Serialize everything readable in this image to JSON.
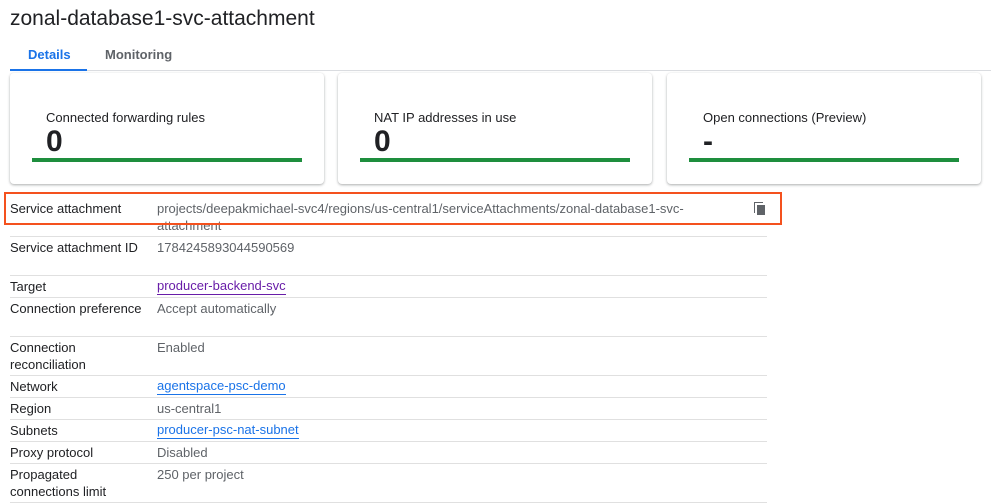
{
  "title": "zonal-database1-svc-attachment",
  "tabs": [
    {
      "label": "Details",
      "active": true
    },
    {
      "label": "Monitoring",
      "active": false
    }
  ],
  "cards": [
    {
      "label": "Connected forwarding rules",
      "value": "0"
    },
    {
      "label": "NAT IP addresses in use",
      "value": "0"
    },
    {
      "label": "Open connections (Preview)",
      "value": "-"
    }
  ],
  "colors": {
    "bar": "#1e8e3e",
    "link": "#1a73e8",
    "visited_link": "#681da8",
    "highlight": "#f4511e"
  },
  "details": [
    {
      "key": "Service attachment",
      "value": "projects/deepakmichael-svc4/regions/us-central1/serviceAttachments/zonal-database1-svc-attachment",
      "icon": "copy-icon"
    },
    {
      "key": "Service attachment ID",
      "value": "1784245893044590569"
    },
    {
      "key": "Target",
      "value": "producer-backend-svc",
      "link": "visited"
    },
    {
      "key": "Connection preference",
      "value": "Accept automatically"
    },
    {
      "key": "Connection reconciliation",
      "value": "Enabled"
    },
    {
      "key": "Network",
      "value": "agentspace-psc-demo",
      "link": "normal"
    },
    {
      "key": "Region",
      "value": "us-central1"
    },
    {
      "key": "Subnets",
      "value": "producer-psc-nat-subnet",
      "link": "normal"
    },
    {
      "key": "Proxy protocol",
      "value": "Disabled"
    },
    {
      "key": "Propagated connections limit",
      "value": "250 per project"
    }
  ]
}
